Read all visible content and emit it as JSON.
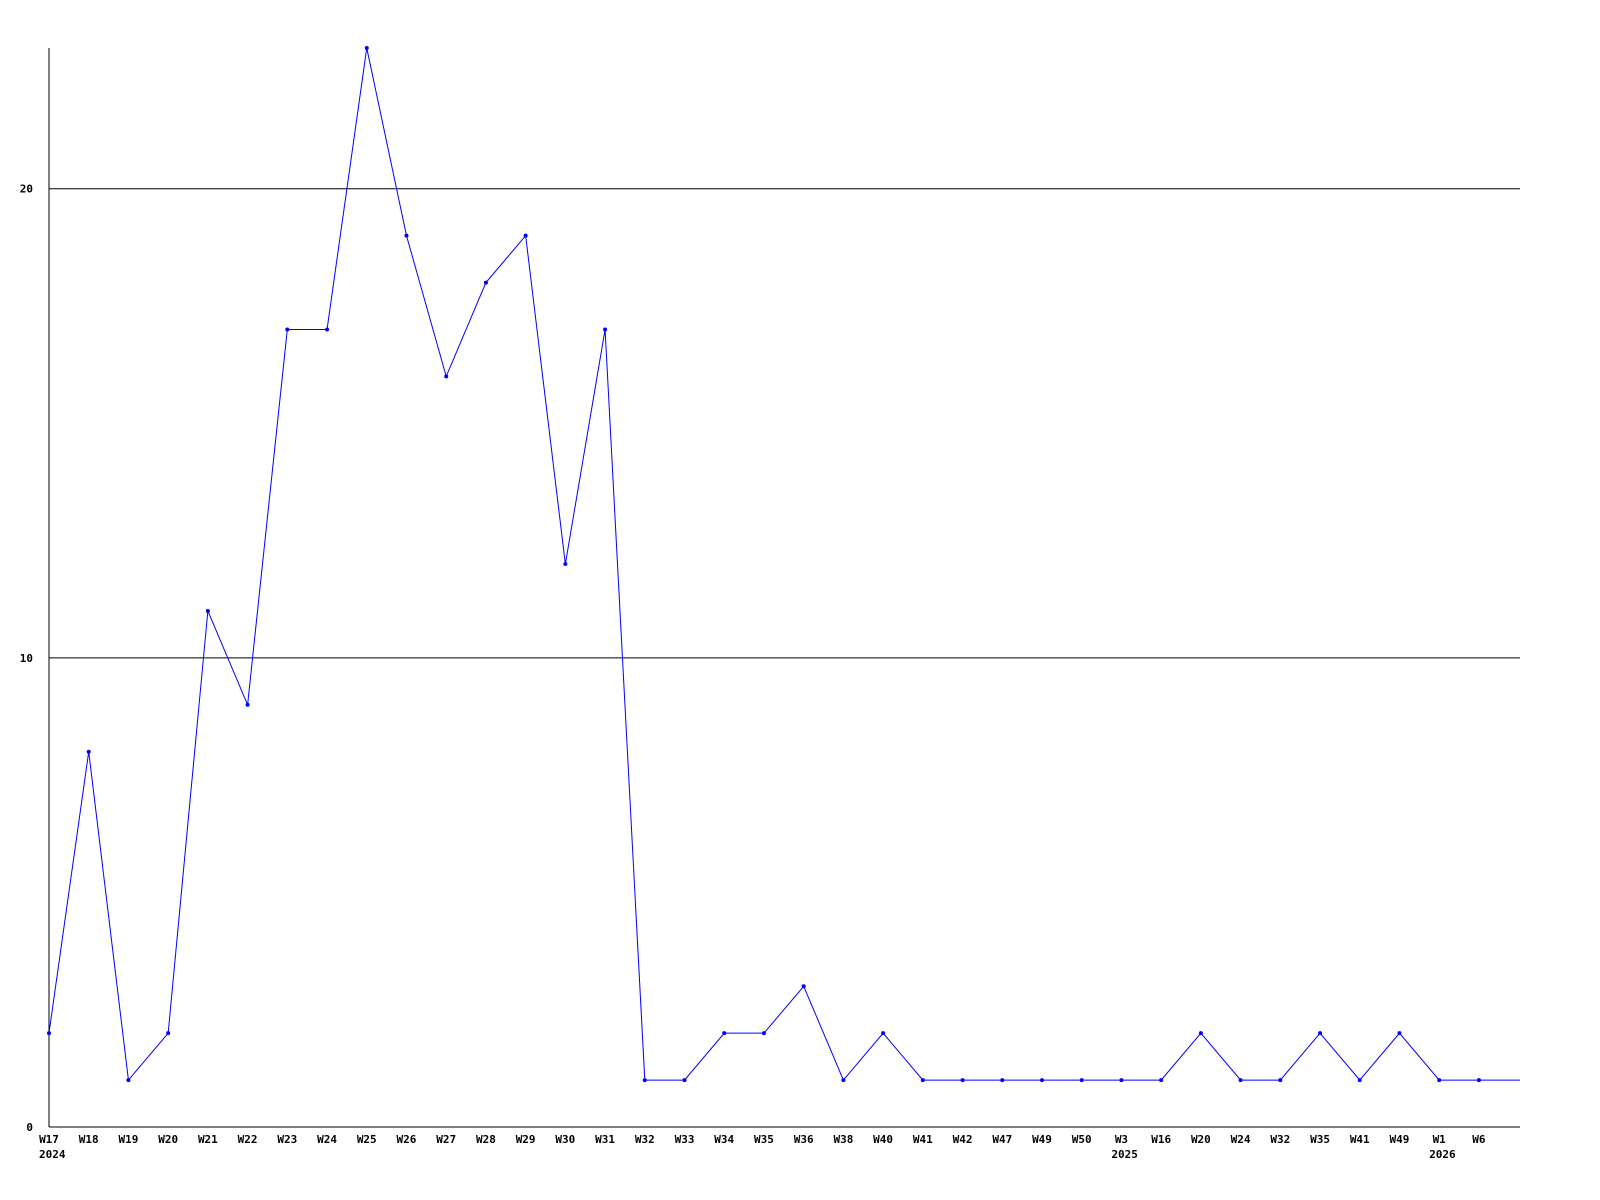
{
  "chart_data": {
    "type": "line",
    "title": "",
    "xlabel": "",
    "ylabel": "",
    "ylim": [
      0,
      23
    ],
    "yticks": [
      0,
      10,
      20
    ],
    "grid": true,
    "line_color": "#0000ff",
    "categories": [
      "W17",
      "W18",
      "W19",
      "W20",
      "W21",
      "W22",
      "W23",
      "W24",
      "W25",
      "W26",
      "W27",
      "W28",
      "W29",
      "W30",
      "W31",
      "W32",
      "W33",
      "W34",
      "W35",
      "W36",
      "W38",
      "W40",
      "W41",
      "W42",
      "W47",
      "W49",
      "W50",
      "W3",
      "W16",
      "W20",
      "W24",
      "W32",
      "W35",
      "W41",
      "W49",
      "W1",
      "W6"
    ],
    "year_labels": [
      {
        "index": 0,
        "label": "2024"
      },
      {
        "index": 27,
        "label": "2025"
      },
      {
        "index": 35,
        "label": "2026"
      }
    ],
    "values": [
      2,
      8,
      1,
      2,
      11,
      9,
      17,
      17,
      23,
      19,
      16,
      18,
      19,
      12,
      17,
      1,
      1,
      2,
      2,
      3,
      1,
      2,
      1,
      1,
      1,
      1,
      1,
      1,
      1,
      2,
      1,
      1,
      2,
      1,
      2,
      1,
      1
    ],
    "trailing_value": 1
  }
}
